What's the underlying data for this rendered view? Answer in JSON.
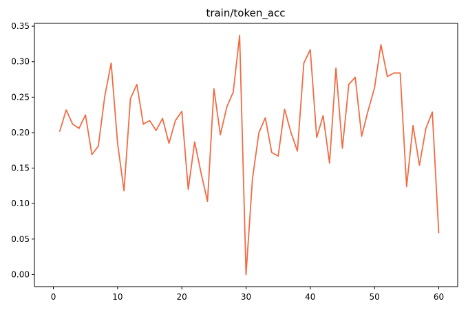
{
  "chart_data": {
    "type": "line",
    "title": "train/token_acc",
    "xlabel": "",
    "ylabel": "",
    "xlim": [
      -2.95,
      62.95
    ],
    "ylim": [
      -0.017,
      0.354
    ],
    "x_ticks": [
      0,
      10,
      20,
      30,
      40,
      50,
      60
    ],
    "y_ticks": [
      0.0,
      0.05,
      0.1,
      0.15,
      0.2,
      0.25,
      0.3,
      0.35
    ],
    "grid": false,
    "legend": "none",
    "series": [
      {
        "color": "#f26b43",
        "x": [
          1,
          2,
          3,
          4,
          5,
          6,
          7,
          8,
          9,
          10,
          11,
          12,
          13,
          14,
          15,
          16,
          17,
          18,
          19,
          20,
          21,
          22,
          23,
          24,
          25,
          26,
          27,
          28,
          29,
          30,
          31,
          32,
          33,
          34,
          35,
          36,
          37,
          38,
          39,
          40,
          41,
          42,
          43,
          44,
          45,
          46,
          47,
          48,
          49,
          50,
          51,
          52,
          53,
          54,
          55,
          56,
          57,
          58,
          59,
          60
        ],
        "y": [
          0.202,
          0.232,
          0.212,
          0.206,
          0.225,
          0.169,
          0.181,
          0.251,
          0.298,
          0.185,
          0.118,
          0.248,
          0.268,
          0.212,
          0.217,
          0.203,
          0.22,
          0.185,
          0.217,
          0.23,
          0.12,
          0.187,
          0.143,
          0.103,
          0.262,
          0.197,
          0.236,
          0.257,
          0.337,
          0.0,
          0.135,
          0.2,
          0.221,
          0.172,
          0.167,
          0.233,
          0.2,
          0.174,
          0.298,
          0.317,
          0.193,
          0.224,
          0.157,
          0.291,
          0.178,
          0.268,
          0.278,
          0.195,
          0.231,
          0.263,
          0.324,
          0.279,
          0.284,
          0.284,
          0.124,
          0.21,
          0.154,
          0.206,
          0.229,
          0.059
        ]
      }
    ]
  }
}
